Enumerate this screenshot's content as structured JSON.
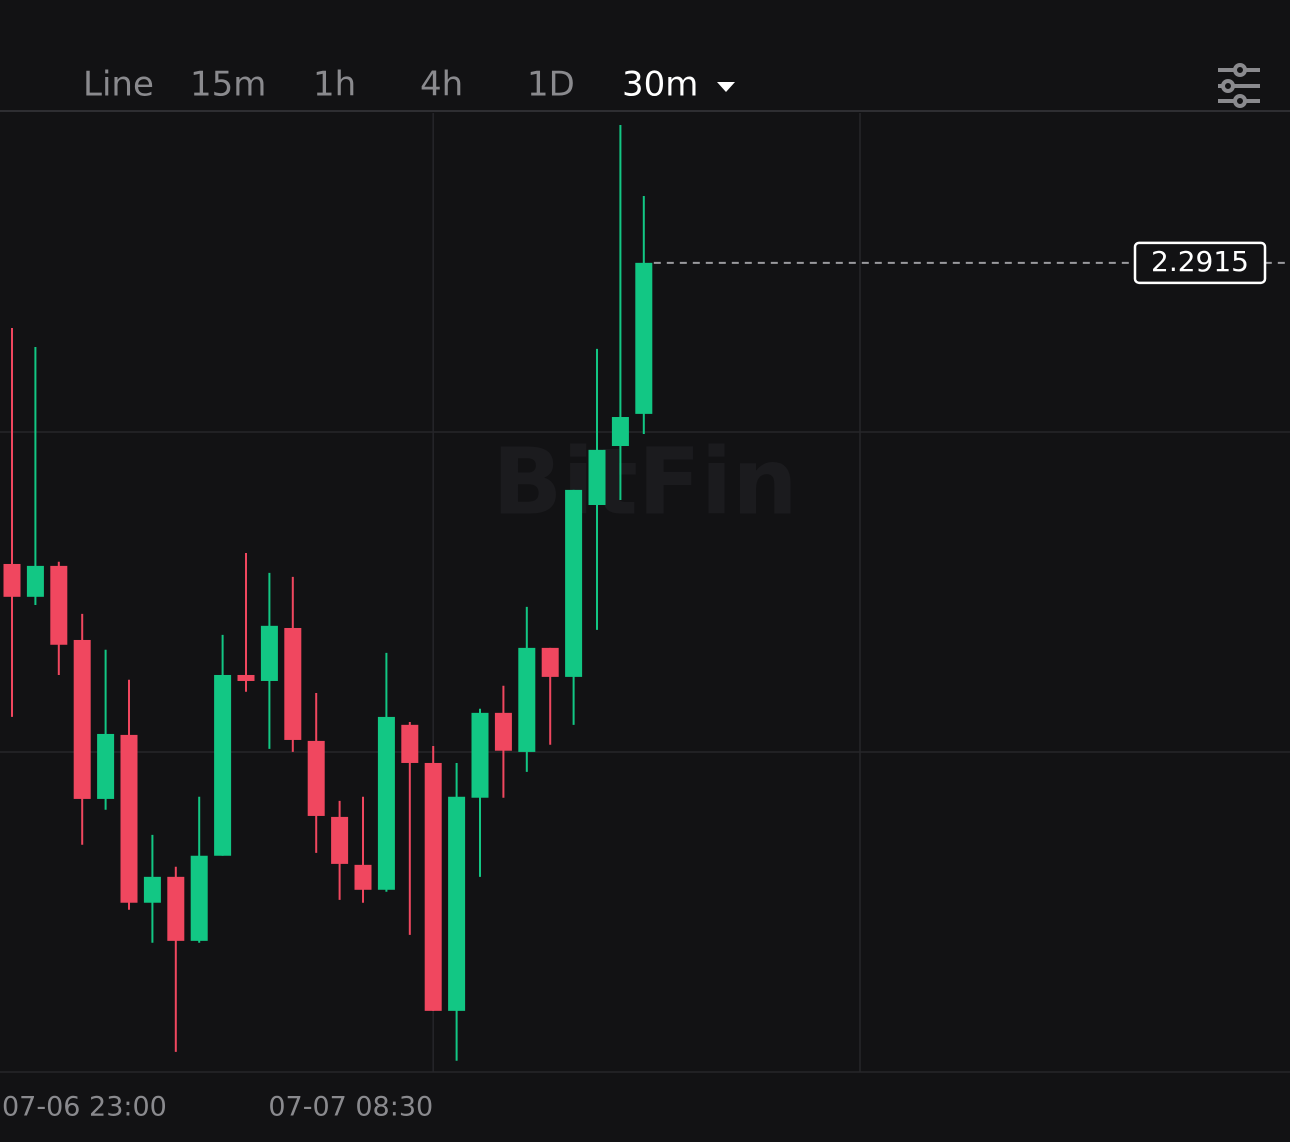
{
  "toolbar": {
    "tabs": [
      "Line",
      "15m",
      "1h",
      "4h",
      "1D"
    ],
    "active": "30m"
  },
  "chart_data": {
    "type": "candlestick",
    "watermark": "BitFin",
    "x": [
      0,
      1,
      2,
      3,
      4,
      5,
      6,
      7,
      8,
      9,
      10,
      11,
      12,
      13,
      14,
      15,
      16,
      17,
      18,
      19,
      20,
      21,
      22,
      23,
      24,
      25,
      26,
      27
    ],
    "open": [
      2.1659,
      2.1522,
      2.1651,
      2.1342,
      2.0679,
      2.0946,
      2.0246,
      2.0354,
      2.0087,
      2.0442,
      2.1196,
      2.1171,
      2.1392,
      2.0921,
      2.0604,
      2.0404,
      2.03,
      2.0988,
      2.0829,
      1.9795,
      2.0684,
      2.1038,
      2.0875,
      2.1309,
      2.1188,
      2.1905,
      2.2151,
      2.2285
    ],
    "high": [
      2.2643,
      2.2564,
      2.1668,
      2.1451,
      2.1301,
      2.1176,
      2.0529,
      2.0396,
      2.0688,
      2.1363,
      2.1705,
      2.1622,
      2.1605,
      2.1121,
      2.0671,
      2.0688,
      2.1288,
      2.1,
      2.09,
      2.0829,
      2.1055,
      2.1151,
      2.148,
      2.1309,
      2.1968,
      2.2556,
      2.349,
      2.3194
    ],
    "low": [
      2.1021,
      2.1488,
      2.1196,
      2.0488,
      2.0634,
      2.0217,
      2.0079,
      1.9624,
      2.0079,
      2.0442,
      2.1126,
      2.0888,
      2.0875,
      2.0454,
      2.0258,
      2.0246,
      2.0292,
      2.0112,
      1.9795,
      1.9587,
      2.0354,
      2.0684,
      2.0792,
      2.0905,
      2.0988,
      2.1384,
      2.1926,
      2.2201
    ],
    "close": [
      2.1522,
      2.1651,
      2.1322,
      2.0679,
      2.095,
      2.0246,
      2.0354,
      2.0087,
      2.0442,
      2.1196,
      2.1171,
      2.1401,
      2.0925,
      2.0608,
      2.0408,
      2.03,
      2.1021,
      2.0829,
      1.9795,
      2.0688,
      2.1038,
      2.088,
      2.1309,
      2.1188,
      2.1968,
      2.2135,
      2.2272,
      2.2915
    ],
    "xlim": [
      -0.513,
      54.615
    ],
    "ylim": [
      1.954,
      2.354
    ],
    "xticks": [
      {
        "value": -1,
        "label": "07-06 23:00"
      },
      {
        "value": 18,
        "label": "07-07 08:30"
      }
    ],
    "last_price": 2.2915,
    "up_color": "#12c784",
    "down_color": "#f0475f"
  }
}
